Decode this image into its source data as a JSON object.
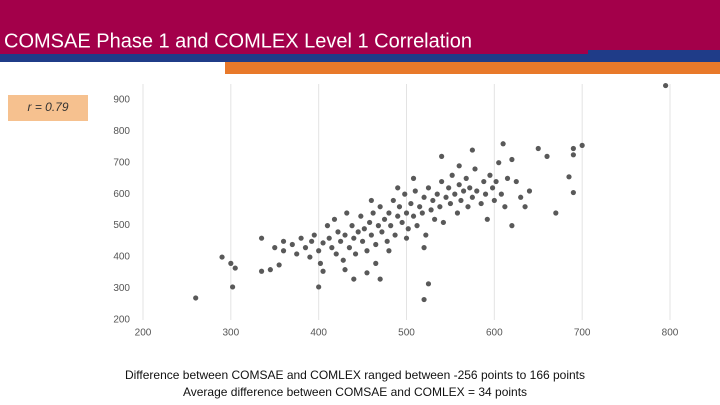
{
  "chart_data": {
    "type": "scatter",
    "title": "COMSAE Phase 1 and COMLEX Level 1 Correlation",
    "annotation": "r = 0.79",
    "footer": [
      "Difference between COMSAE and COMLEX ranged between -256 points to 166 points",
      "Average difference between COMSAE and COMLEX = 34 points"
    ],
    "xlim": [
      200,
      800
    ],
    "xticks": [
      200,
      300,
      400,
      500,
      600,
      700,
      800
    ],
    "ylim": [
      200,
      950
    ],
    "yticks": [
      200,
      300,
      400,
      500,
      600,
      700,
      800,
      900
    ],
    "grid": "x",
    "series": [
      {
        "color": "#595959",
        "x": [
          260,
          290,
          302,
          305,
          300,
          335,
          335,
          345,
          355,
          360,
          400,
          405,
          440,
          470,
          520,
          525,
          610,
          620,
          650,
          660,
          670,
          685,
          690,
          690,
          690,
          700,
          795,
          370,
          375,
          380,
          385,
          390,
          392,
          395,
          400,
          402,
          405,
          410,
          412,
          415,
          418,
          420,
          422,
          425,
          428,
          430,
          432,
          435,
          438,
          440,
          442,
          445,
          448,
          450,
          452,
          455,
          458,
          460,
          462,
          465,
          468,
          470,
          472,
          475,
          478,
          480,
          482,
          485,
          487,
          490,
          492,
          495,
          498,
          500,
          502,
          505,
          508,
          510,
          512,
          515,
          518,
          520,
          522,
          525,
          528,
          530,
          532,
          535,
          538,
          540,
          542,
          545,
          548,
          550,
          552,
          555,
          558,
          560,
          562,
          565,
          568,
          570,
          572,
          575,
          578,
          580,
          585,
          588,
          590,
          592,
          595,
          598,
          600,
          602,
          605,
          608,
          612,
          615,
          620,
          625,
          630,
          635,
          640,
          540,
          560,
          575,
          520,
          465,
          430,
          350,
          360,
          455,
          480,
          500,
          508,
          490,
          460
        ],
        "values": [
          270,
          400,
          305,
          365,
          380,
          355,
          460,
          360,
          375,
          420,
          305,
          355,
          330,
          330,
          265,
          315,
          760,
          710,
          745,
          720,
          540,
          655,
          725,
          745,
          605,
          755,
          945,
          440,
          410,
          460,
          430,
          400,
          450,
          470,
          420,
          380,
          445,
          500,
          460,
          430,
          520,
          410,
          480,
          450,
          390,
          470,
          540,
          430,
          500,
          460,
          410,
          480,
          530,
          450,
          490,
          420,
          510,
          470,
          540,
          440,
          500,
          560,
          480,
          520,
          450,
          540,
          500,
          580,
          470,
          530,
          560,
          510,
          600,
          540,
          490,
          570,
          530,
          610,
          500,
          560,
          540,
          590,
          470,
          620,
          550,
          580,
          520,
          600,
          560,
          640,
          510,
          590,
          620,
          570,
          660,
          600,
          540,
          630,
          580,
          610,
          650,
          560,
          620,
          590,
          680,
          610,
          570,
          640,
          600,
          520,
          660,
          620,
          580,
          640,
          700,
          600,
          560,
          650,
          500,
          640,
          590,
          560,
          610,
          720,
          690,
          740,
          430,
          380,
          360,
          430,
          450,
          350,
          420,
          460,
          650,
          620,
          580
        ]
      }
    ]
  }
}
